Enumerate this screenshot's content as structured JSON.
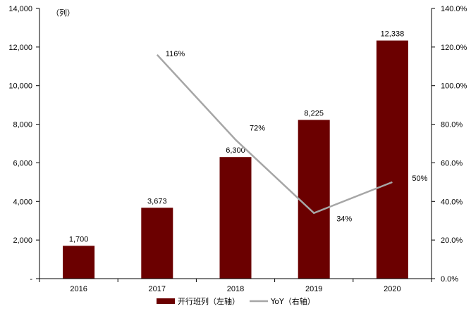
{
  "chart_data": {
    "type": "bar",
    "categories": [
      "2016",
      "2017",
      "2018",
      "2019",
      "2020"
    ],
    "series": [
      {
        "name": "开行班列（左轴）",
        "type": "bar",
        "axis": "left",
        "color": "#6b0000",
        "values": [
          1700,
          3673,
          6300,
          8225,
          12338
        ],
        "labels": [
          "1,700",
          "3,673",
          "6,300",
          "8,225",
          "12,338"
        ]
      },
      {
        "name": "YoY（右轴）",
        "type": "line",
        "axis": "right",
        "color": "#a6a6a6",
        "values": [
          null,
          116,
          72,
          34,
          50
        ],
        "labels": [
          null,
          "116%",
          "72%",
          "34%",
          "50%"
        ]
      }
    ],
    "left_axis": {
      "unit_label": "（列）",
      "ylim": [
        0,
        14000
      ],
      "ticks": [
        0,
        2000,
        4000,
        6000,
        8000,
        10000,
        12000,
        14000
      ],
      "tick_labels": [
        "-",
        "2,000",
        "4,000",
        "6,000",
        "8,000",
        "10,000",
        "12,000",
        "14,000"
      ]
    },
    "right_axis": {
      "ylim": [
        0,
        140
      ],
      "ticks": [
        0,
        20,
        40,
        60,
        80,
        100,
        120,
        140
      ],
      "tick_labels": [
        "0.0%",
        "20.0%",
        "40.0%",
        "60.0%",
        "80.0%",
        "100.0%",
        "120.0%",
        "140.0%"
      ]
    },
    "grid": false,
    "legend_position": "bottom"
  }
}
